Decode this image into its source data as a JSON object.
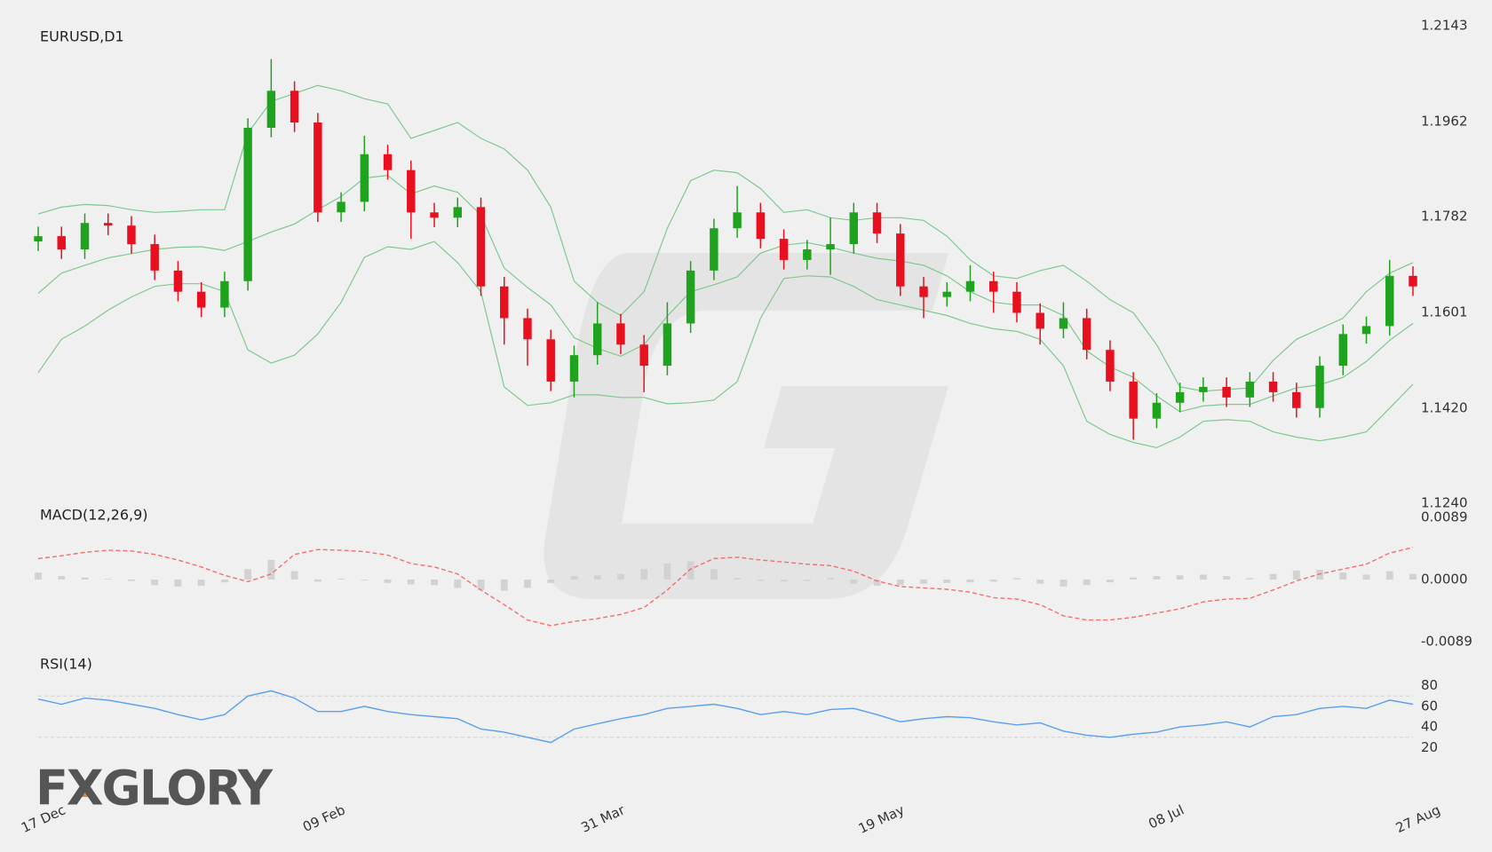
{
  "logo": "FXGLORY",
  "chart_data": [
    {
      "type": "candlestick",
      "title": "EURUSD,D1",
      "categories": [
        "17 Dec",
        null,
        null,
        null,
        null,
        null,
        null,
        null,
        null,
        null,
        null,
        null,
        "09 Feb",
        null,
        null,
        null,
        null,
        null,
        null,
        null,
        null,
        null,
        null,
        null,
        "31 Mar",
        null,
        null,
        null,
        null,
        null,
        null,
        null,
        null,
        null,
        null,
        null,
        "19 May",
        null,
        null,
        null,
        null,
        null,
        null,
        null,
        null,
        null,
        null,
        null,
        "08 Jul",
        null,
        null,
        null,
        null,
        null,
        null,
        null,
        null,
        null,
        null,
        "27 Aug"
      ],
      "open": [
        1.1735,
        1.1745,
        1.172,
        1.177,
        1.1765,
        1.173,
        1.168,
        1.164,
        1.161,
        1.166,
        1.195,
        1.202,
        1.196,
        1.179,
        1.181,
        1.19,
        1.187,
        1.179,
        1.178,
        1.18,
        1.165,
        1.159,
        1.155,
        1.147,
        1.152,
        1.158,
        1.154,
        1.15,
        1.158,
        1.168,
        1.176,
        1.179,
        1.174,
        1.17,
        1.172,
        1.173,
        1.179,
        1.175,
        1.165,
        1.163,
        1.164,
        1.166,
        1.164,
        1.16,
        1.157,
        1.159,
        1.153,
        1.147,
        1.14,
        1.143,
        1.145,
        1.146,
        1.144,
        1.147,
        1.145,
        1.142,
        1.15,
        1.156,
        1.1575,
        1.167
      ],
      "high": [
        1.1763,
        1.1763,
        1.1788,
        1.1788,
        1.1783,
        1.1748,
        1.1698,
        1.1658,
        1.1678,
        1.1968,
        1.208,
        1.2038,
        1.1978,
        1.1828,
        1.1935,
        1.1918,
        1.1888,
        1.1808,
        1.1818,
        1.1818,
        1.1668,
        1.1608,
        1.1568,
        1.1538,
        1.162,
        1.1598,
        1.1558,
        1.162,
        1.1698,
        1.1778,
        1.184,
        1.1808,
        1.1758,
        1.1738,
        1.178,
        1.1808,
        1.1808,
        1.1768,
        1.1668,
        1.1658,
        1.169,
        1.1678,
        1.1658,
        1.1618,
        1.162,
        1.1608,
        1.1548,
        1.1488,
        1.1448,
        1.1468,
        1.1478,
        1.1478,
        1.1488,
        1.1488,
        1.1468,
        1.1518,
        1.1578,
        1.1593,
        1.17,
        1.1688
      ],
      "low": [
        1.1717,
        1.1702,
        1.1702,
        1.1747,
        1.1712,
        1.1662,
        1.1622,
        1.1592,
        1.1592,
        1.1642,
        1.1932,
        1.1942,
        1.1772,
        1.1772,
        1.1792,
        1.1852,
        1.174,
        1.1762,
        1.1762,
        1.1632,
        1.154,
        1.15,
        1.1452,
        1.144,
        1.1502,
        1.1522,
        1.145,
        1.1482,
        1.1562,
        1.1662,
        1.1742,
        1.1722,
        1.1682,
        1.1682,
        1.1672,
        1.1712,
        1.1732,
        1.1632,
        1.159,
        1.1612,
        1.1622,
        1.16,
        1.1582,
        1.154,
        1.1552,
        1.1512,
        1.1452,
        1.136,
        1.1382,
        1.1412,
        1.1432,
        1.1422,
        1.1422,
        1.1432,
        1.1402,
        1.1402,
        1.1482,
        1.1542,
        1.1557,
        1.1632
      ],
      "close": [
        1.1745,
        1.172,
        1.177,
        1.1765,
        1.173,
        1.168,
        1.164,
        1.161,
        1.166,
        1.195,
        1.202,
        1.196,
        1.179,
        1.181,
        1.19,
        1.187,
        1.179,
        1.178,
        1.18,
        1.165,
        1.159,
        1.155,
        1.147,
        1.152,
        1.158,
        1.154,
        1.15,
        1.158,
        1.168,
        1.176,
        1.179,
        1.174,
        1.17,
        1.172,
        1.173,
        1.179,
        1.175,
        1.165,
        1.163,
        1.164,
        1.166,
        1.164,
        1.16,
        1.157,
        1.159,
        1.153,
        1.147,
        1.14,
        1.143,
        1.145,
        1.146,
        1.144,
        1.147,
        1.145,
        1.142,
        1.15,
        1.156,
        1.1575,
        1.167,
        1.165
      ],
      "up_color": "#1fa31f",
      "down_color": "#e8101e",
      "bands": {
        "color": "#7fc98f",
        "upper": [
          1.1787,
          1.18,
          1.1805,
          1.1803,
          1.1795,
          1.179,
          1.1792,
          1.1795,
          1.1795,
          1.194,
          1.2,
          1.2015,
          1.203,
          1.202,
          1.2005,
          1.1995,
          1.193,
          1.1945,
          1.196,
          1.193,
          1.191,
          1.187,
          1.18,
          1.166,
          1.162,
          1.1595,
          1.164,
          1.176,
          1.185,
          1.187,
          1.1865,
          1.1835,
          1.179,
          1.1795,
          1.178,
          1.1775,
          1.178,
          1.178,
          1.1775,
          1.1745,
          1.17,
          1.167,
          1.1665,
          1.168,
          1.169,
          1.166,
          1.1625,
          1.16,
          1.154,
          1.146,
          1.1452,
          1.1455,
          1.1458,
          1.151,
          1.155,
          1.157,
          1.159,
          1.164,
          1.1675,
          1.1695
        ],
        "middle": [
          1.1637,
          1.1675,
          1.169,
          1.1704,
          1.1712,
          1.172,
          1.1724,
          1.1725,
          1.1718,
          1.1735,
          1.1753,
          1.1768,
          1.1795,
          1.182,
          1.1855,
          1.186,
          1.1825,
          1.184,
          1.1828,
          1.1785,
          1.1685,
          1.1648,
          1.1615,
          1.1553,
          1.1533,
          1.1518,
          1.154,
          1.1594,
          1.164,
          1.1653,
          1.1668,
          1.1713,
          1.1728,
          1.1733,
          1.1724,
          1.1713,
          1.1703,
          1.1698,
          1.169,
          1.167,
          1.164,
          1.162,
          1.1615,
          1.1615,
          1.1595,
          1.1528,
          1.1498,
          1.1478,
          1.1443,
          1.1413,
          1.1424,
          1.1427,
          1.1427,
          1.1443,
          1.1458,
          1.1464,
          1.1478,
          1.1508,
          1.1548,
          1.158
        ],
        "lower": [
          1.1487,
          1.155,
          1.1575,
          1.1605,
          1.163,
          1.165,
          1.1655,
          1.1655,
          1.164,
          1.153,
          1.1505,
          1.152,
          1.156,
          1.162,
          1.1705,
          1.1725,
          1.172,
          1.1735,
          1.1695,
          1.164,
          1.146,
          1.1425,
          1.143,
          1.1445,
          1.1445,
          1.144,
          1.144,
          1.1428,
          1.143,
          1.1435,
          1.147,
          1.159,
          1.1665,
          1.167,
          1.1668,
          1.165,
          1.1625,
          1.1615,
          1.1605,
          1.1595,
          1.158,
          1.157,
          1.1565,
          1.155,
          1.15,
          1.1395,
          1.137,
          1.1355,
          1.1345,
          1.1365,
          1.1395,
          1.1398,
          1.1395,
          1.1375,
          1.1365,
          1.1358,
          1.1365,
          1.1375,
          1.142,
          1.1465
        ]
      },
      "ylim": [
        1.124,
        1.2143
      ],
      "yticks": [
        1.2143,
        1.1962,
        1.1782,
        1.1601,
        {
          "value": 1.142,
          "label": "1.1420"
        },
        {
          "value": 1.124,
          "label": "1.1240"
        }
      ]
    },
    {
      "type": "macd",
      "title": "MACD(12,26,9)",
      "histogram": {
        "color": "#d2d2d2",
        "values": [
          0.001,
          0.0005,
          0.0003,
          0.0001,
          -0.0002,
          -0.0008,
          -0.001,
          -0.0009,
          -0.0004,
          0.0015,
          0.0028,
          0.0012,
          -0.0003,
          0.0001,
          -0.0001,
          -0.0005,
          -0.0007,
          -0.0008,
          -0.0012,
          -0.0015,
          -0.0016,
          -0.0012,
          -0.0005,
          0.0005,
          0.0006,
          0.0008,
          0.0015,
          0.0023,
          0.0026,
          0.0015,
          0.0002,
          -0.0002,
          -0.0003,
          -0.0002,
          0.0002,
          -0.0006,
          -0.0009,
          -0.0008,
          -0.0006,
          -0.0005,
          -0.0004,
          -0.0003,
          0.0002,
          -0.0006,
          -0.001,
          -0.0008,
          -0.0004,
          0.0003,
          0.0005,
          0.0006,
          0.0007,
          0.0005,
          0.0002,
          0.0008,
          0.0013,
          0.0014,
          0.001,
          0.0007,
          0.0012,
          0.0008
        ]
      },
      "signal": {
        "color": "#f07070",
        "values": [
          0.003,
          0.0034,
          0.0039,
          0.0042,
          0.0041,
          0.0036,
          0.0028,
          0.0018,
          0.0006,
          -0.0003,
          0.0008,
          0.0036,
          0.0043,
          0.0042,
          0.004,
          0.0035,
          0.0023,
          0.0018,
          0.0008,
          -0.0015,
          -0.0036,
          -0.0058,
          -0.0066,
          -0.006,
          -0.0056,
          -0.005,
          -0.004,
          -0.0015,
          0.0015,
          0.003,
          0.0032,
          0.0028,
          0.0025,
          0.0022,
          0.002,
          0.0012,
          -0.0002,
          -0.001,
          -0.0012,
          -0.0014,
          -0.0018,
          -0.0026,
          -0.0028,
          -0.0036,
          -0.0052,
          -0.0058,
          -0.0058,
          -0.0054,
          -0.0048,
          -0.0042,
          -0.0032,
          -0.0028,
          -0.0027,
          -0.0015,
          -0.0002,
          0.0008,
          0.0015,
          0.0022,
          0.0038,
          0.0046
        ]
      },
      "ylim": [
        -0.0089,
        0.0089
      ],
      "yticks": [
        0.0089,
        {
          "value": 0,
          "label": "0.0000"
        },
        -0.0089
      ]
    },
    {
      "type": "rsi",
      "title": "RSI(14)",
      "color": "#5aa0f0",
      "values": [
        67,
        62,
        68,
        66,
        62,
        58,
        52,
        47,
        52,
        70,
        75,
        68,
        55,
        55,
        60,
        55,
        52,
        50,
        48,
        38,
        35,
        30,
        25,
        38,
        43,
        48,
        52,
        58,
        60,
        62,
        58,
        52,
        55,
        52,
        57,
        58,
        52,
        45,
        48,
        50,
        49,
        45,
        42,
        44,
        36,
        32,
        30,
        33,
        35,
        40,
        42,
        45,
        40,
        50,
        52,
        58,
        60,
        58,
        66,
        62
      ],
      "levels": [
        70,
        30
      ],
      "ylim": [
        10,
        90
      ],
      "yticks": [
        80,
        60,
        40,
        20
      ]
    }
  ]
}
